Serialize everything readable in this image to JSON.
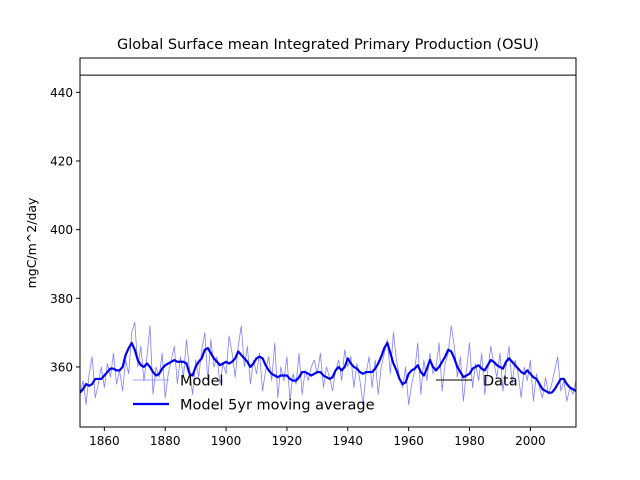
{
  "chart_data": {
    "type": "line",
    "title": "Global Surface mean Integrated Primary Production (OSU)",
    "xlabel": "",
    "ylabel": "mgC/m^2/day",
    "xlim": [
      1852,
      2015
    ],
    "ylim": [
      342.5,
      450
    ],
    "xticks": [
      1860,
      1880,
      1900,
      1920,
      1940,
      1960,
      1980,
      2000
    ],
    "yticks": [
      360,
      380,
      400,
      420,
      440
    ],
    "grid": false,
    "legend_placement": "lower center",
    "series": [
      {
        "name": "Model",
        "color": "#8080ff",
        "style": "thin",
        "x": [
          1852,
          1853,
          1854,
          1855,
          1856,
          1857,
          1858,
          1859,
          1860,
          1861,
          1862,
          1863,
          1864,
          1865,
          1866,
          1867,
          1868,
          1869,
          1870,
          1871,
          1872,
          1873,
          1874,
          1875,
          1876,
          1877,
          1878,
          1879,
          1880,
          1881,
          1882,
          1883,
          1884,
          1885,
          1886,
          1887,
          1888,
          1889,
          1890,
          1891,
          1892,
          1893,
          1894,
          1895,
          1896,
          1897,
          1898,
          1899,
          1900,
          1901,
          1902,
          1903,
          1904,
          1905,
          1906,
          1907,
          1908,
          1909,
          1910,
          1911,
          1912,
          1913,
          1914,
          1915,
          1916,
          1917,
          1918,
          1919,
          1920,
          1921,
          1922,
          1923,
          1924,
          1925,
          1926,
          1927,
          1928,
          1929,
          1930,
          1931,
          1932,
          1933,
          1934,
          1935,
          1936,
          1937,
          1938,
          1939,
          1940,
          1941,
          1942,
          1943,
          1944,
          1945,
          1946,
          1947,
          1948,
          1949,
          1950,
          1951,
          1952,
          1953,
          1954,
          1955,
          1956,
          1957,
          1958,
          1959,
          1960,
          1961,
          1962,
          1963,
          1964,
          1965,
          1966,
          1967,
          1968,
          1969,
          1970,
          1971,
          1972,
          1973,
          1974,
          1975,
          1976,
          1977,
          1978,
          1979,
          1980,
          1981,
          1982,
          1983,
          1984,
          1985,
          1986,
          1987,
          1988,
          1989,
          1990,
          1991,
          1992,
          1993,
          1994,
          1995,
          1996,
          1997,
          1998,
          1999,
          2000,
          2001,
          2002,
          2003,
          2004,
          2005,
          2006,
          2007,
          2008,
          2009,
          2010,
          2011,
          2012,
          2013,
          2014,
          2015
        ],
        "values": [
          352,
          356,
          349,
          358,
          363,
          351,
          355,
          360,
          354,
          361,
          357,
          364,
          355,
          359,
          353,
          362,
          358,
          370,
          373,
          360,
          366,
          356,
          363,
          372,
          352,
          360,
          357,
          364,
          351,
          358,
          362,
          366,
          355,
          363,
          357,
          368,
          359,
          352,
          362,
          357,
          365,
          370,
          356,
          368,
          360,
          363,
          355,
          361,
          358,
          369,
          364,
          357,
          366,
          372,
          360,
          366,
          355,
          362,
          358,
          364,
          353,
          359,
          363,
          356,
          367,
          351,
          360,
          356,
          363,
          350,
          358,
          355,
          364,
          352,
          359,
          356,
          360,
          362,
          358,
          364,
          354,
          360,
          357,
          353,
          359,
          362,
          356,
          365,
          360,
          363,
          354,
          361,
          356,
          349,
          358,
          363,
          354,
          362,
          352,
          360,
          364,
          368,
          358,
          370,
          362,
          357,
          354,
          360,
          349,
          355,
          359,
          367,
          352,
          362,
          356,
          364,
          358,
          360,
          367,
          353,
          361,
          364,
          372,
          366,
          357,
          363,
          350,
          359,
          367,
          354,
          361,
          356,
          364,
          352,
          359,
          366,
          361,
          357,
          364,
          353,
          360,
          366,
          355,
          362,
          358,
          351,
          360,
          356,
          362,
          350,
          358,
          354,
          351,
          357,
          352,
          355,
          359,
          363,
          353,
          356,
          350,
          354,
          352,
          356
        ]
      },
      {
        "name": "Model 5yr moving average",
        "color": "#0000ee",
        "style": "thick",
        "x": [
          1852,
          1853,
          1854,
          1855,
          1856,
          1857,
          1858,
          1859,
          1860,
          1861,
          1862,
          1863,
          1864,
          1865,
          1866,
          1867,
          1868,
          1869,
          1870,
          1871,
          1872,
          1873,
          1874,
          1875,
          1876,
          1877,
          1878,
          1879,
          1880,
          1881,
          1882,
          1883,
          1884,
          1885,
          1886,
          1887,
          1888,
          1889,
          1890,
          1891,
          1892,
          1893,
          1894,
          1895,
          1896,
          1897,
          1898,
          1899,
          1900,
          1901,
          1902,
          1903,
          1904,
          1905,
          1906,
          1907,
          1908,
          1909,
          1910,
          1911,
          1912,
          1913,
          1914,
          1915,
          1916,
          1917,
          1918,
          1919,
          1920,
          1921,
          1922,
          1923,
          1924,
          1925,
          1926,
          1927,
          1928,
          1929,
          1930,
          1931,
          1932,
          1933,
          1934,
          1935,
          1936,
          1937,
          1938,
          1939,
          1940,
          1941,
          1942,
          1943,
          1944,
          1945,
          1946,
          1947,
          1948,
          1949,
          1950,
          1951,
          1952,
          1953,
          1954,
          1955,
          1956,
          1957,
          1958,
          1959,
          1960,
          1961,
          1962,
          1963,
          1964,
          1965,
          1966,
          1967,
          1968,
          1969,
          1970,
          1971,
          1972,
          1973,
          1974,
          1975,
          1976,
          1977,
          1978,
          1979,
          1980,
          1981,
          1982,
          1983,
          1984,
          1985,
          1986,
          1987,
          1988,
          1989,
          1990,
          1991,
          1992,
          1993,
          1994,
          1995,
          1996,
          1997,
          1998,
          1999,
          2000,
          2001,
          2002,
          2003,
          2004,
          2005,
          2006,
          2007,
          2008,
          2009,
          2010,
          2011,
          2012,
          2013,
          2014,
          2015
        ],
        "values": [
          352.5,
          353.5,
          355,
          354.5,
          355,
          356.5,
          356.5,
          356.5,
          357.5,
          358.5,
          359.5,
          359.5,
          359,
          359,
          360,
          363.5,
          365.5,
          367,
          365,
          362,
          360.5,
          360,
          361,
          360,
          358.5,
          357.5,
          358,
          359.5,
          360.5,
          361,
          361.5,
          362,
          361.5,
          361.5,
          361.5,
          361,
          358,
          357.5,
          360,
          361.5,
          362.5,
          365,
          365.5,
          364,
          362.5,
          361.5,
          360.5,
          361,
          361.5,
          361,
          361.5,
          362.5,
          364.5,
          363.5,
          362.5,
          361.5,
          360,
          361,
          362.5,
          363,
          362.5,
          360.5,
          359,
          358,
          357.5,
          357,
          357.5,
          357.5,
          357.5,
          356.5,
          356,
          356,
          357,
          358.5,
          358.5,
          358,
          357.5,
          358,
          358.5,
          358.5,
          357.5,
          357,
          356.5,
          357,
          359,
          360,
          359,
          360,
          362.5,
          361,
          360,
          359.5,
          358.5,
          358,
          358.5,
          358.5,
          358.5,
          359.5,
          361,
          363,
          365.5,
          367,
          364,
          361,
          359,
          356.5,
          355,
          355.5,
          358,
          359,
          359.5,
          360.5,
          358.5,
          357.5,
          359.5,
          362,
          360,
          359,
          360,
          361.5,
          363,
          365,
          364.5,
          362.5,
          360,
          358.5,
          357,
          357.5,
          358,
          359.5,
          360,
          360.5,
          359.5,
          359,
          360.5,
          362,
          361.5,
          360.5,
          360,
          359.5,
          361.5,
          362.5,
          361.5,
          360.5,
          359.5,
          358.5,
          358,
          359,
          358,
          357,
          356.5,
          355,
          353.5,
          353,
          352.5,
          352.5,
          353.5,
          355,
          356.5,
          356.5,
          355,
          354,
          353.5,
          353
        ]
      },
      {
        "name": "Data",
        "color": "#000000",
        "style": "thin",
        "x": [
          1852,
          2015
        ],
        "values": [
          445,
          445
        ]
      }
    ]
  }
}
